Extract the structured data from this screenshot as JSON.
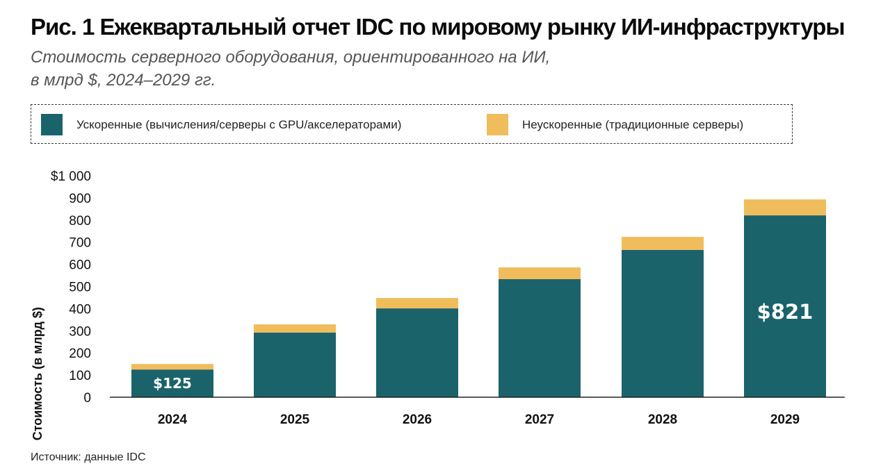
{
  "header": {
    "title": "Рис. 1 Ежеквартальный отчет IDC по мировому рынку ИИ-инфраструктуры",
    "subtitle_line1": "Стоимость серверного оборудования, ориентированного на ИИ,",
    "subtitle_line2": "в млрд $, 2024–2029 гг."
  },
  "legend": {
    "items": [
      {
        "label": "Ускоренные (вычисления/серверы с GPU/акселераторами)",
        "color": "#1b636b"
      },
      {
        "label": "Неускоренные (традиционные серверы)",
        "color": "#f0bd5c"
      }
    ]
  },
  "footer": {
    "source": "Источник: данные IDC"
  },
  "chart_data": {
    "type": "bar",
    "stacked": true,
    "title": "Рис. 1 Ежеквартальный отчет IDC по мировому рынку ИИ-инфраструктуры",
    "subtitle": "Стоимость серверного оборудования, ориентированного на ИИ, в млрд $, 2024–2029 гг.",
    "xlabel": "",
    "ylabel": "Стоимость (в млрд $)",
    "ylim": [
      0,
      1000
    ],
    "yticks": [
      0,
      100,
      200,
      300,
      400,
      500,
      600,
      700,
      800,
      900,
      1000
    ],
    "ytick_labels": [
      "0",
      "100",
      "200",
      "300",
      "400",
      "500",
      "600",
      "700",
      "800",
      "900",
      "$1 000"
    ],
    "grid": false,
    "legend_position": "top",
    "categories": [
      "2024",
      "2025",
      "2026",
      "2027",
      "2028",
      "2029"
    ],
    "series": [
      {
        "name": "Ускоренные (вычисления/серверы с GPU/акселераторами)",
        "color": "#1b636b",
        "values": [
          125,
          292,
          401,
          533,
          665,
          821
        ]
      },
      {
        "name": "Неускоренные (традиционные серверы)",
        "color": "#f0bd5c",
        "values": [
          25,
          37,
          47,
          53,
          59,
          72
        ]
      }
    ],
    "annotations": [
      {
        "category": "2024",
        "series": 0,
        "text": "$125"
      },
      {
        "category": "2029",
        "series": 0,
        "text": "$821"
      }
    ]
  }
}
